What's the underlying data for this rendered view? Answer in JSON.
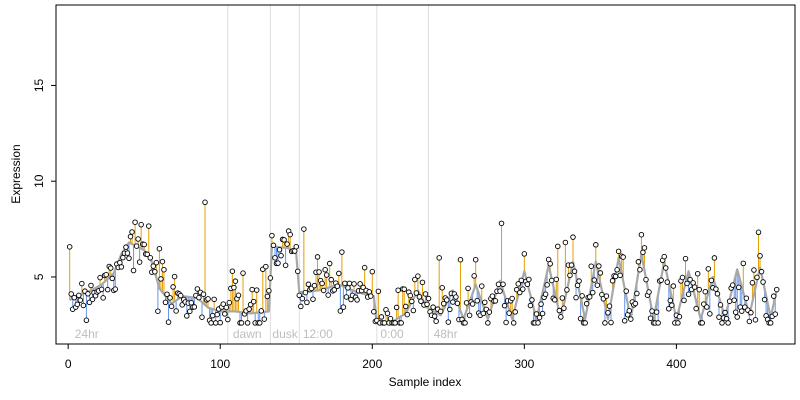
{
  "chart_data": {
    "type": "scatter",
    "title": "",
    "xlabel": "Sample index",
    "ylabel": "Expression",
    "xlim": [
      -8,
      478
    ],
    "ylim": [
      1.5,
      19.2
    ],
    "x_ticks": [
      0,
      100,
      200,
      300,
      400
    ],
    "y_ticks": [
      5,
      10,
      15
    ],
    "grid": false,
    "colors": {
      "above_fit_segment": "#E69F00",
      "below_fit_segment": "#6495ED",
      "fitted_line": "#A8A8A8",
      "points": "#000000",
      "marker_lines": "#DDDDDD",
      "annotation_text": "#BDBDBD"
    },
    "marker_lines_x": [
      105,
      133,
      152,
      203,
      237
    ],
    "annotations": [
      {
        "x": 3,
        "text": "24hr"
      },
      {
        "x": 107,
        "text": "dawn"
      },
      {
        "x": 133,
        "text": "dusk"
      },
      {
        "x": 153,
        "text": "12:00"
      },
      {
        "x": 204,
        "text": "0:00"
      },
      {
        "x": 239,
        "text": "48hr"
      }
    ],
    "fitted_knots": [
      [
        1,
        3.8
      ],
      [
        15,
        4.3
      ],
      [
        22,
        4.6
      ],
      [
        30,
        5.2
      ],
      [
        35,
        6.2
      ],
      [
        40,
        6.8
      ],
      [
        50,
        6.4
      ],
      [
        55,
        5.8
      ],
      [
        60,
        4.4
      ],
      [
        68,
        3.6
      ],
      [
        75,
        4.0
      ],
      [
        85,
        3.9
      ],
      [
        92,
        3.4
      ],
      [
        100,
        3.2
      ],
      [
        110,
        3.2
      ],
      [
        120,
        3.1
      ],
      [
        132,
        3.2
      ],
      [
        134,
        6.6
      ],
      [
        145,
        6.5
      ],
      [
        150,
        6.2
      ],
      [
        152,
        4.2
      ],
      [
        165,
        4.3
      ],
      [
        178,
        4.6
      ],
      [
        190,
        4.2
      ],
      [
        201,
        4.0
      ],
      [
        203,
        2.6
      ],
      [
        212,
        2.6
      ],
      [
        222,
        3.1
      ],
      [
        230,
        4.3
      ],
      [
        236,
        3.4
      ],
      [
        245,
        3.0
      ],
      [
        253,
        4.3
      ],
      [
        260,
        2.8
      ],
      [
        268,
        4.6
      ],
      [
        276,
        2.8
      ],
      [
        284,
        4.8
      ],
      [
        292,
        2.8
      ],
      [
        300,
        5.3
      ],
      [
        308,
        2.8
      ],
      [
        316,
        5.6
      ],
      [
        324,
        2.8
      ],
      [
        332,
        5.8
      ],
      [
        340,
        2.8
      ],
      [
        347,
        5.8
      ],
      [
        355,
        2.8
      ],
      [
        362,
        6.0
      ],
      [
        370,
        2.8
      ],
      [
        377,
        6.2
      ],
      [
        385,
        2.8
      ],
      [
        392,
        5.8
      ],
      [
        400,
        2.8
      ],
      [
        408,
        5.3
      ],
      [
        416,
        2.8
      ],
      [
        424,
        5.0
      ],
      [
        432,
        2.9
      ],
      [
        440,
        5.4
      ],
      [
        448,
        3.0
      ],
      [
        455,
        5.5
      ],
      [
        462,
        2.9
      ],
      [
        466,
        4.3
      ]
    ],
    "points": {
      "count": 466,
      "seed": 7,
      "noise_sd": 0.95,
      "floor": 2.6,
      "outliers": [
        [
          90,
          8.9
        ],
        [
          108,
          5.3
        ],
        [
          115,
          5.2
        ],
        [
          128,
          5.4
        ],
        [
          155,
          7.5
        ],
        [
          172,
          5.7
        ],
        [
          180,
          6.3
        ],
        [
          244,
          6.0
        ],
        [
          258,
          5.9
        ],
        [
          285,
          7.8
        ],
        [
          322,
          6.6
        ],
        [
          327,
          6.8
        ]
      ]
    }
  }
}
